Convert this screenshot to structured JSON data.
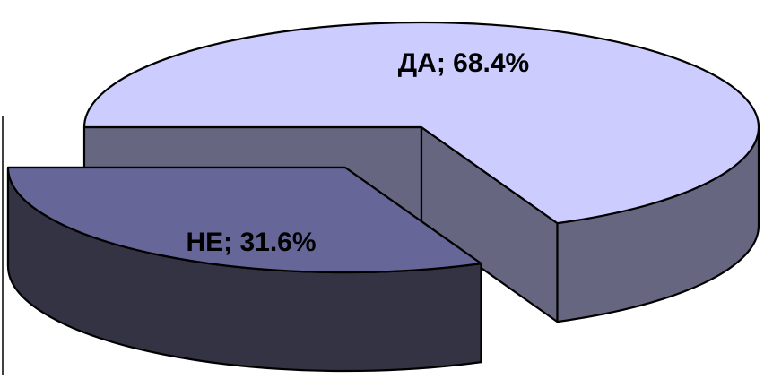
{
  "chart_data": {
    "type": "pie",
    "style": "3d-exploded",
    "title": "",
    "legend": "none",
    "slices": [
      {
        "label": "ДА",
        "value": 68.4,
        "display": "ДА; 68.4%",
        "top_color": "#ccccff",
        "side_color": "#666680",
        "exploded": false
      },
      {
        "label": "НЕ",
        "value": 31.6,
        "display": "НЕ; 31.6%",
        "top_color": "#666699",
        "side_color": "#333344",
        "exploded": true
      }
    ]
  }
}
